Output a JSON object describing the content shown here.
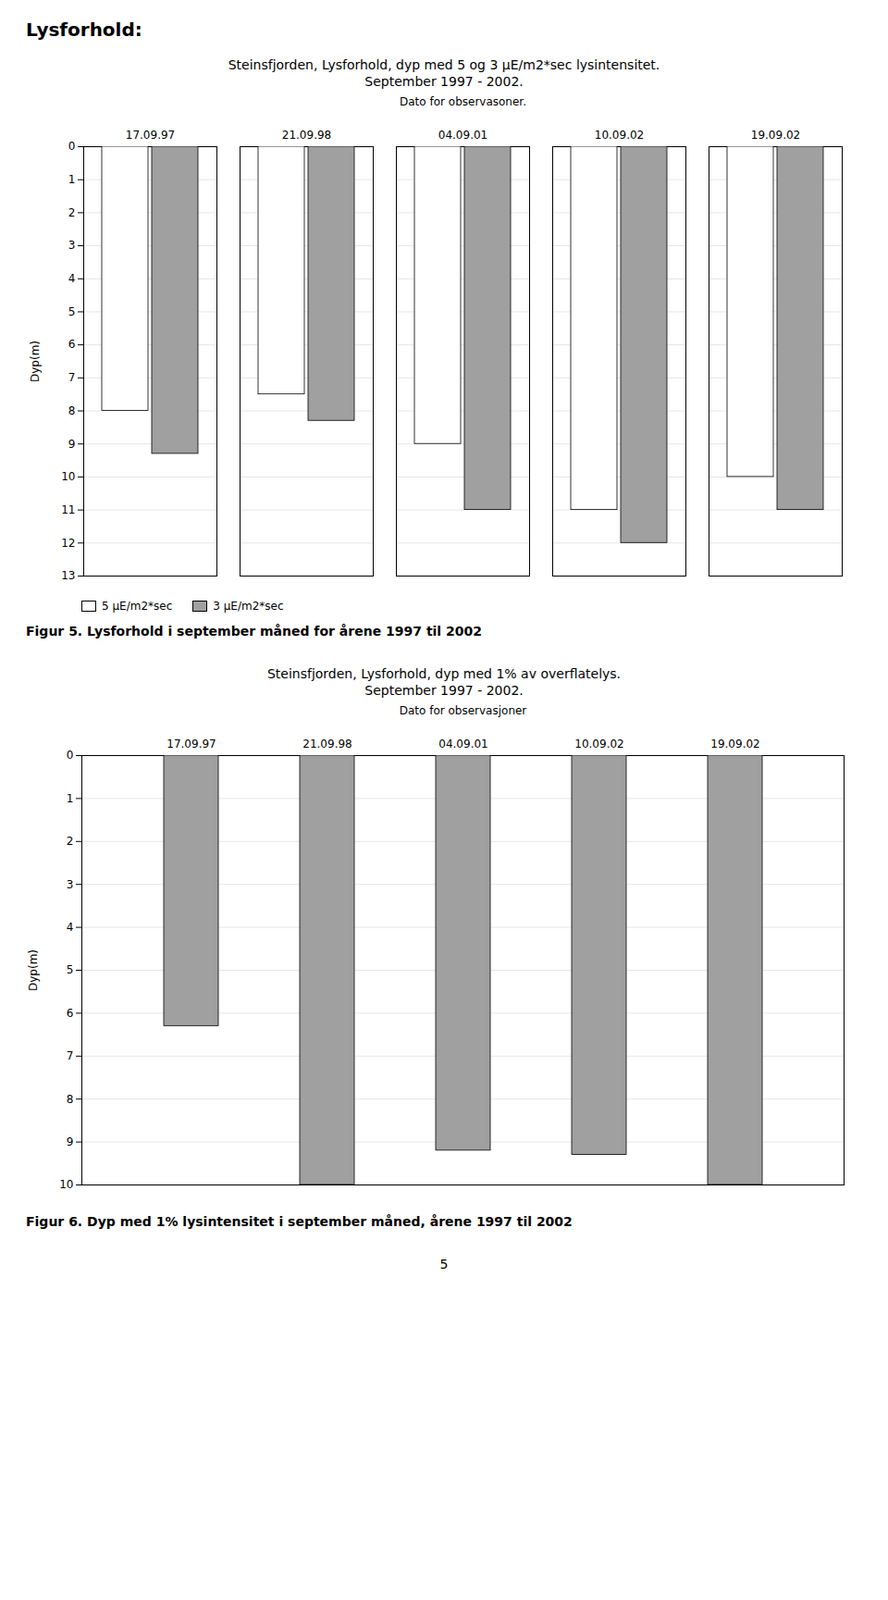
{
  "chart_data": [
    {
      "type": "bar",
      "annotations": [
        "Lysforhold:"
      ],
      "title": "Steinsfjorden, Lysforhold, dyp med 5 og 3 μE/m2*sec lysintensitet.",
      "subtitle": "September 1997 - 2002.",
      "xlabel": "Dato for observasoner.",
      "ylabel": "Dyp(m)",
      "categories": [
        "17.09.97",
        "21.09.98",
        "04.09.01",
        "10.09.02",
        "19.09.02"
      ],
      "series": [
        {
          "name": "5 μE/m2*sec",
          "color": "#ffffff",
          "values": [
            8.0,
            7.5,
            9.0,
            11.0,
            10.0
          ]
        },
        {
          "name": "3 μE/m2*sec",
          "color": "#a0a0a0",
          "values": [
            9.3,
            8.3,
            11.0,
            12.0,
            11.0
          ]
        }
      ],
      "ylim": [
        13,
        0
      ],
      "yticks": [
        0,
        1,
        2,
        3,
        4,
        5,
        6,
        7,
        8,
        9,
        10,
        11,
        12,
        13
      ],
      "grid": true,
      "legend": "lower left",
      "caption": "Figur 5.  Lysforhold i september måned for årene 1997 til 2002"
    },
    {
      "type": "bar",
      "title": "Steinsfjorden, Lysforhold, dyp med 1% av overflatelys.",
      "subtitle": "September 1997 - 2002.",
      "xlabel": "Dato for observasjoner",
      "ylabel": "Dyp(m)",
      "categories": [
        "17.09.97",
        "21.09.98",
        "04.09.01",
        "10.09.02",
        "19.09.02"
      ],
      "values": [
        6.3,
        10.0,
        9.2,
        9.3,
        10.0
      ],
      "color": "#a0a0a0",
      "ylim": [
        10,
        0
      ],
      "yticks": [
        0,
        1,
        2,
        3,
        4,
        5,
        6,
        7,
        8,
        9,
        10
      ],
      "grid": true,
      "caption": "Figur 6. Dyp med 1% lysintensitet i september måned, årene 1997 til 2002",
      "annotations": [
        "5"
      ]
    }
  ]
}
